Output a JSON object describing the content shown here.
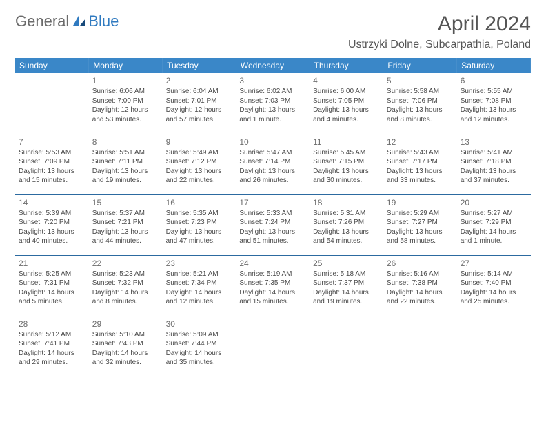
{
  "logo": {
    "part1": "General",
    "part2": "Blue"
  },
  "title": "April 2024",
  "location": "Ustrzyki Dolne, Subcarpathia, Poland",
  "colors": {
    "header_bg": "#3a87c8",
    "header_text": "#ffffff",
    "divider": "#2c6aa0",
    "body_text": "#4a4a4a",
    "logo_accent": "#2f7ac0",
    "logo_gray": "#6b6b6b",
    "background": "#ffffff"
  },
  "typography": {
    "title_fontsize": 30,
    "location_fontsize": 16,
    "dayheader_fontsize": 12,
    "daynum_fontsize": 12,
    "body_fontsize": 10
  },
  "day_headers": [
    "Sunday",
    "Monday",
    "Tuesday",
    "Wednesday",
    "Thursday",
    "Friday",
    "Saturday"
  ],
  "weeks": [
    [
      null,
      {
        "n": "1",
        "sr": "6:06 AM",
        "ss": "7:00 PM",
        "dl1": "Daylight: 12 hours",
        "dl2": "and 53 minutes."
      },
      {
        "n": "2",
        "sr": "6:04 AM",
        "ss": "7:01 PM",
        "dl1": "Daylight: 12 hours",
        "dl2": "and 57 minutes."
      },
      {
        "n": "3",
        "sr": "6:02 AM",
        "ss": "7:03 PM",
        "dl1": "Daylight: 13 hours",
        "dl2": "and 1 minute."
      },
      {
        "n": "4",
        "sr": "6:00 AM",
        "ss": "7:05 PM",
        "dl1": "Daylight: 13 hours",
        "dl2": "and 4 minutes."
      },
      {
        "n": "5",
        "sr": "5:58 AM",
        "ss": "7:06 PM",
        "dl1": "Daylight: 13 hours",
        "dl2": "and 8 minutes."
      },
      {
        "n": "6",
        "sr": "5:55 AM",
        "ss": "7:08 PM",
        "dl1": "Daylight: 13 hours",
        "dl2": "and 12 minutes."
      }
    ],
    [
      {
        "n": "7",
        "sr": "5:53 AM",
        "ss": "7:09 PM",
        "dl1": "Daylight: 13 hours",
        "dl2": "and 15 minutes."
      },
      {
        "n": "8",
        "sr": "5:51 AM",
        "ss": "7:11 PM",
        "dl1": "Daylight: 13 hours",
        "dl2": "and 19 minutes."
      },
      {
        "n": "9",
        "sr": "5:49 AM",
        "ss": "7:12 PM",
        "dl1": "Daylight: 13 hours",
        "dl2": "and 22 minutes."
      },
      {
        "n": "10",
        "sr": "5:47 AM",
        "ss": "7:14 PM",
        "dl1": "Daylight: 13 hours",
        "dl2": "and 26 minutes."
      },
      {
        "n": "11",
        "sr": "5:45 AM",
        "ss": "7:15 PM",
        "dl1": "Daylight: 13 hours",
        "dl2": "and 30 minutes."
      },
      {
        "n": "12",
        "sr": "5:43 AM",
        "ss": "7:17 PM",
        "dl1": "Daylight: 13 hours",
        "dl2": "and 33 minutes."
      },
      {
        "n": "13",
        "sr": "5:41 AM",
        "ss": "7:18 PM",
        "dl1": "Daylight: 13 hours",
        "dl2": "and 37 minutes."
      }
    ],
    [
      {
        "n": "14",
        "sr": "5:39 AM",
        "ss": "7:20 PM",
        "dl1": "Daylight: 13 hours",
        "dl2": "and 40 minutes."
      },
      {
        "n": "15",
        "sr": "5:37 AM",
        "ss": "7:21 PM",
        "dl1": "Daylight: 13 hours",
        "dl2": "and 44 minutes."
      },
      {
        "n": "16",
        "sr": "5:35 AM",
        "ss": "7:23 PM",
        "dl1": "Daylight: 13 hours",
        "dl2": "and 47 minutes."
      },
      {
        "n": "17",
        "sr": "5:33 AM",
        "ss": "7:24 PM",
        "dl1": "Daylight: 13 hours",
        "dl2": "and 51 minutes."
      },
      {
        "n": "18",
        "sr": "5:31 AM",
        "ss": "7:26 PM",
        "dl1": "Daylight: 13 hours",
        "dl2": "and 54 minutes."
      },
      {
        "n": "19",
        "sr": "5:29 AM",
        "ss": "7:27 PM",
        "dl1": "Daylight: 13 hours",
        "dl2": "and 58 minutes."
      },
      {
        "n": "20",
        "sr": "5:27 AM",
        "ss": "7:29 PM",
        "dl1": "Daylight: 14 hours",
        "dl2": "and 1 minute."
      }
    ],
    [
      {
        "n": "21",
        "sr": "5:25 AM",
        "ss": "7:31 PM",
        "dl1": "Daylight: 14 hours",
        "dl2": "and 5 minutes."
      },
      {
        "n": "22",
        "sr": "5:23 AM",
        "ss": "7:32 PM",
        "dl1": "Daylight: 14 hours",
        "dl2": "and 8 minutes."
      },
      {
        "n": "23",
        "sr": "5:21 AM",
        "ss": "7:34 PM",
        "dl1": "Daylight: 14 hours",
        "dl2": "and 12 minutes."
      },
      {
        "n": "24",
        "sr": "5:19 AM",
        "ss": "7:35 PM",
        "dl1": "Daylight: 14 hours",
        "dl2": "and 15 minutes."
      },
      {
        "n": "25",
        "sr": "5:18 AM",
        "ss": "7:37 PM",
        "dl1": "Daylight: 14 hours",
        "dl2": "and 19 minutes."
      },
      {
        "n": "26",
        "sr": "5:16 AM",
        "ss": "7:38 PM",
        "dl1": "Daylight: 14 hours",
        "dl2": "and 22 minutes."
      },
      {
        "n": "27",
        "sr": "5:14 AM",
        "ss": "7:40 PM",
        "dl1": "Daylight: 14 hours",
        "dl2": "and 25 minutes."
      }
    ],
    [
      {
        "n": "28",
        "sr": "5:12 AM",
        "ss": "7:41 PM",
        "dl1": "Daylight: 14 hours",
        "dl2": "and 29 minutes."
      },
      {
        "n": "29",
        "sr": "5:10 AM",
        "ss": "7:43 PM",
        "dl1": "Daylight: 14 hours",
        "dl2": "and 32 minutes."
      },
      {
        "n": "30",
        "sr": "5:09 AM",
        "ss": "7:44 PM",
        "dl1": "Daylight: 14 hours",
        "dl2": "and 35 minutes."
      },
      null,
      null,
      null,
      null
    ]
  ],
  "labels": {
    "sunrise_prefix": "Sunrise: ",
    "sunset_prefix": "Sunset: "
  }
}
